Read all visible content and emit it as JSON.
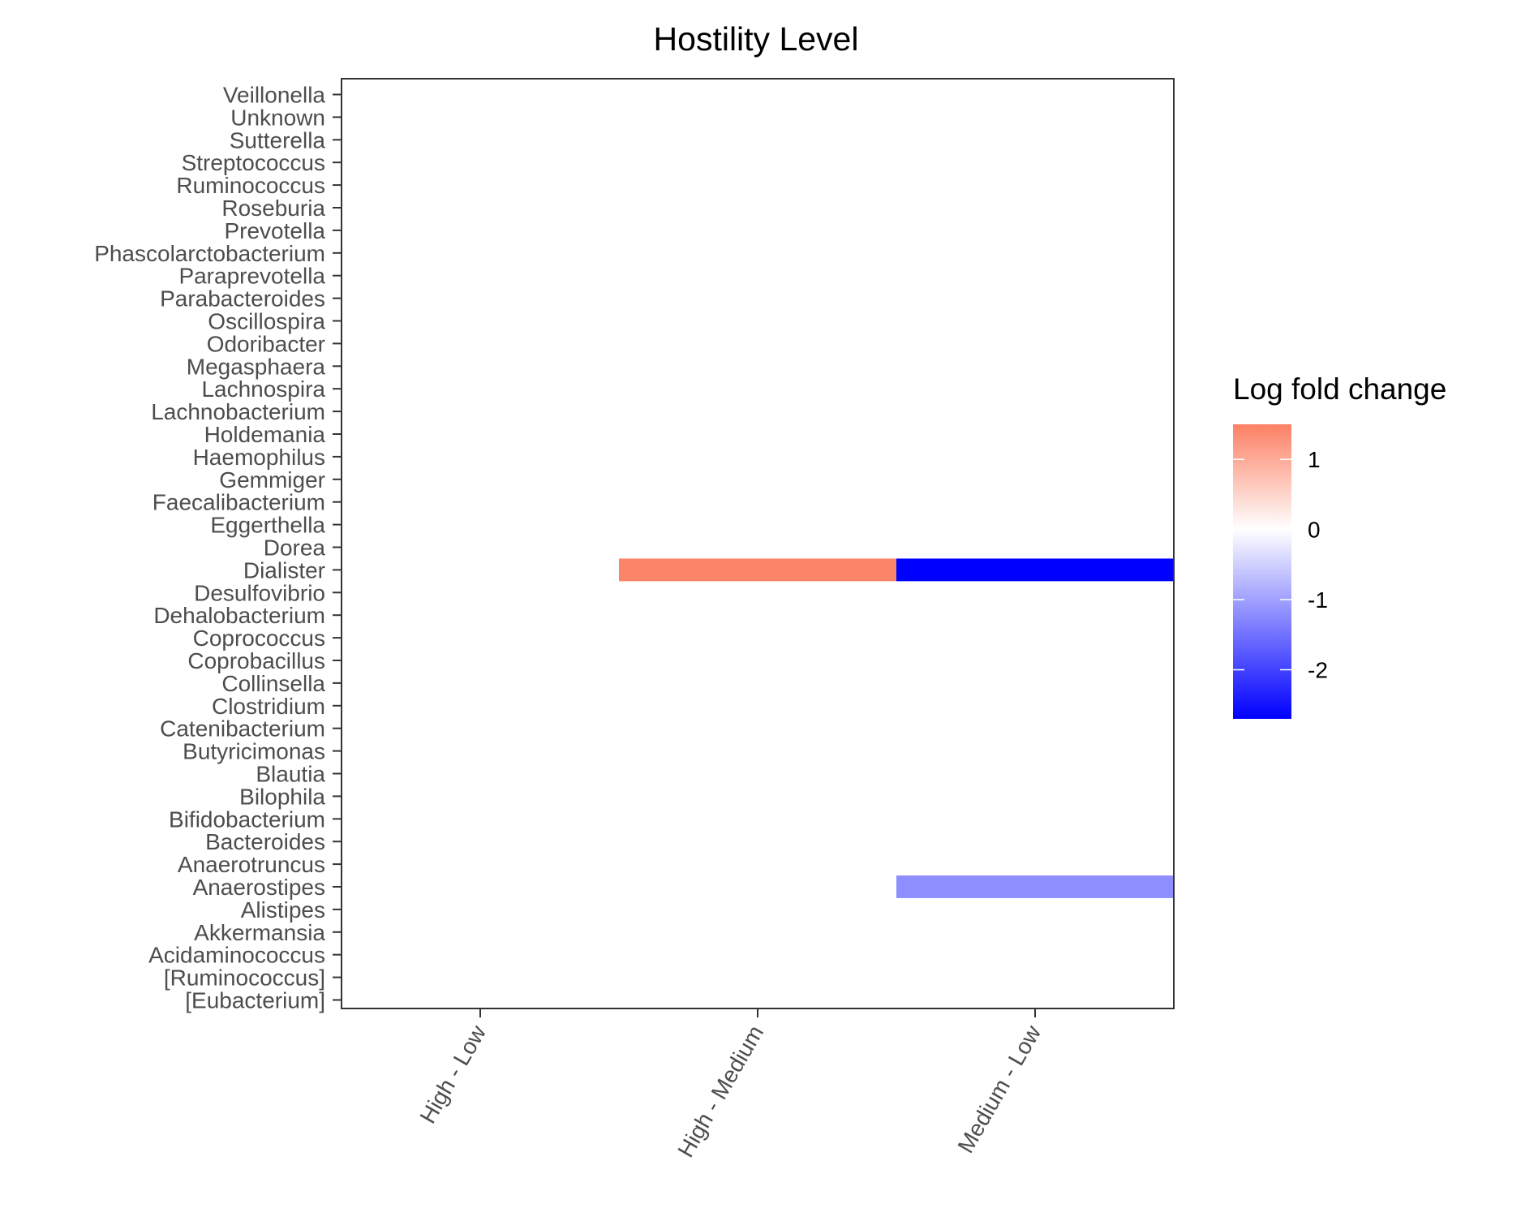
{
  "chart_data": {
    "type": "heatmap",
    "title": "Hostility Level",
    "xlabel": "",
    "ylabel": "",
    "categories": [
      "High - Low",
      "High - Medium",
      "Medium - Low"
    ],
    "genera": [
      "Veillonella",
      "Unknown",
      "Sutterella",
      "Streptococcus",
      "Ruminococcus",
      "Roseburia",
      "Prevotella",
      "Phascolarctobacterium",
      "Paraprevotella",
      "Parabacteroides",
      "Oscillospira",
      "Odoribacter",
      "Megasphaera",
      "Lachnospira",
      "Lachnobacterium",
      "Holdemania",
      "Haemophilus",
      "Gemmiger",
      "Faecalibacterium",
      "Eggerthella",
      "Dorea",
      "Dialister",
      "Desulfovibrio",
      "Dehalobacterium",
      "Coprococcus",
      "Coprobacillus",
      "Collinsella",
      "Clostridium",
      "Catenibacterium",
      "Butyricimonas",
      "Blautia",
      "Bilophila",
      "Bifidobacterium",
      "Bacteroides",
      "Anaerotruncus",
      "Anaerostipes",
      "Alistipes",
      "Akkermansia",
      "Acidaminococcus",
      "[Ruminococcus]",
      "[Eubacterium]"
    ],
    "cells": [
      {
        "genus": "Dialister",
        "comparison": "High - Medium",
        "value": 1.45
      },
      {
        "genus": "Dialister",
        "comparison": "Medium - Low",
        "value": -2.7
      },
      {
        "genus": "Anaerostipes",
        "comparison": "Medium - Low",
        "value": -1.2
      }
    ],
    "legend": {
      "title": "Log fold change",
      "placement": "right",
      "ticks": [
        1,
        0,
        -1,
        -2
      ],
      "tick_labels": [
        "1",
        "0",
        "-1",
        "-2"
      ],
      "range": [
        -2.7,
        1.5
      ],
      "high_color": "#fc8064",
      "mid_color": "#ffffff",
      "low_color": "#0000ff"
    },
    "grid": false
  }
}
